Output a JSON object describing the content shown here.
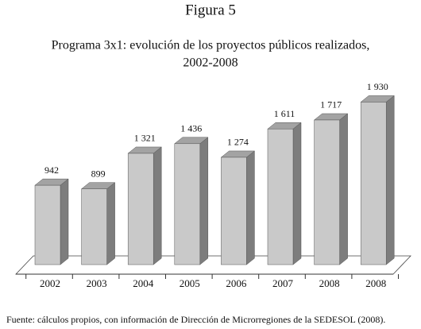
{
  "chart_data": {
    "type": "bar3d",
    "title": "Figura 5",
    "subtitle": [
      "Programa 3x1: evolución de los proyectos públicos realizados,",
      "2002-2008"
    ],
    "categories": [
      "2002",
      "2003",
      "2004",
      "2005",
      "2006",
      "2007",
      "2008",
      "2008"
    ],
    "values": [
      942,
      899,
      1321,
      1436,
      1274,
      1611,
      1717,
      1930
    ],
    "value_labels": [
      "942",
      "899",
      "1 321",
      "1 436",
      "1 274",
      "1 611",
      "1 717",
      "1 930"
    ],
    "ylim": [
      0,
      2000
    ],
    "color": "#c9c9c9",
    "source": "Fuente: cálculos propios, con información de Dirección de Microrregiones de la SEDESOL (2008)."
  }
}
